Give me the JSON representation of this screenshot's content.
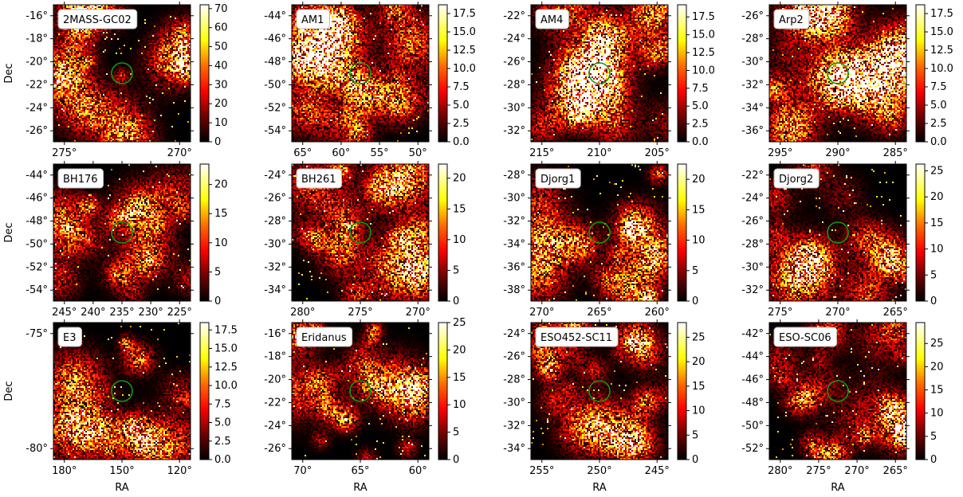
{
  "figure": {
    "xlabel": "RA",
    "ylabel": "Dec",
    "colormap": [
      "#000000",
      "#400000",
      "#800000",
      "#c01000",
      "#ff3000",
      "#ff7000",
      "#ffb000",
      "#ffe020",
      "#ffff60",
      "#ffffe0"
    ],
    "marker_color": "#119911"
  },
  "chart_data": [
    {
      "type": "heatmap",
      "name": "2MASS-GC02",
      "x_ticks": [
        "275°",
        "270°"
      ],
      "y_ticks": [
        "-16°",
        "-18°",
        "-20°",
        "-22°",
        "-24°",
        "-26°"
      ],
      "colorbar_ticks": [
        "0",
        "10",
        "20",
        "30",
        "40",
        "50",
        "60",
        "70"
      ],
      "colorbar_max": 72,
      "xlabel": "",
      "ylabel": "Dec"
    },
    {
      "type": "heatmap",
      "name": "AM1",
      "x_ticks": [
        "65°",
        "60°",
        "55°",
        "50°"
      ],
      "y_ticks": [
        "-44°",
        "-46°",
        "-48°",
        "-50°",
        "-52°",
        "-54°"
      ],
      "colorbar_ticks": [
        "0.0",
        "2.5",
        "5.0",
        "7.5",
        "10.0",
        "12.5",
        "15.0",
        "17.5"
      ],
      "colorbar_max": 18.7,
      "xlabel": "",
      "ylabel": ""
    },
    {
      "type": "heatmap",
      "name": "AM4",
      "x_ticks": [
        "215°",
        "210°",
        "205°"
      ],
      "y_ticks": [
        "-22°",
        "-24°",
        "-26°",
        "-28°",
        "-30°",
        "-32°"
      ],
      "colorbar_ticks": [
        "0.0",
        "2.5",
        "5.0",
        "7.5",
        "10.0",
        "12.5",
        "15.0",
        "17.5"
      ],
      "colorbar_max": 19.2,
      "xlabel": "",
      "ylabel": ""
    },
    {
      "type": "heatmap",
      "name": "Arp2",
      "x_ticks": [
        "295°",
        "290°",
        "285°"
      ],
      "y_ticks": [
        "-26°",
        "-28°",
        "-30°",
        "-32°",
        "-34°",
        "-36°"
      ],
      "colorbar_ticks": [
        "0.0",
        "2.5",
        "5.0",
        "7.5",
        "10.0",
        "12.5",
        "15.0",
        "17.5"
      ],
      "colorbar_max": 18.7,
      "xlabel": "",
      "ylabel": ""
    },
    {
      "type": "heatmap",
      "name": "BH176",
      "x_ticks": [
        "245°",
        "240°",
        "235°",
        "230°",
        "225°"
      ],
      "y_ticks": [
        "-44°",
        "-46°",
        "-48°",
        "-50°",
        "-52°",
        "-54°"
      ],
      "colorbar_ticks": [
        "0",
        "5",
        "10",
        "15",
        "20"
      ],
      "colorbar_max": 23.5,
      "xlabel": "",
      "ylabel": "Dec"
    },
    {
      "type": "heatmap",
      "name": "BH261",
      "x_ticks": [
        "280°",
        "275°",
        "270°"
      ],
      "y_ticks": [
        "-24°",
        "-26°",
        "-28°",
        "-30°",
        "-32°",
        "-34°"
      ],
      "colorbar_ticks": [
        "0",
        "5",
        "10",
        "15",
        "20"
      ],
      "colorbar_max": 22.3,
      "xlabel": "",
      "ylabel": ""
    },
    {
      "type": "heatmap",
      "name": "Djorg1",
      "x_ticks": [
        "270°",
        "265°",
        "260°"
      ],
      "y_ticks": [
        "-28°",
        "-30°",
        "-32°",
        "-34°",
        "-36°",
        "-38°"
      ],
      "colorbar_ticks": [
        "0",
        "5",
        "10",
        "15",
        "20"
      ],
      "colorbar_max": 22.5,
      "xlabel": "",
      "ylabel": ""
    },
    {
      "type": "heatmap",
      "name": "Djorg2",
      "x_ticks": [
        "275°",
        "270°",
        "265°"
      ],
      "y_ticks": [
        "-22°",
        "-24°",
        "-26°",
        "-28°",
        "-30°",
        "-32°"
      ],
      "colorbar_ticks": [
        "0",
        "5",
        "10",
        "15",
        "20",
        "25"
      ],
      "colorbar_max": 26.3,
      "xlabel": "",
      "ylabel": ""
    },
    {
      "type": "heatmap",
      "name": "E3",
      "x_ticks": [
        "180°",
        "150°",
        "120°"
      ],
      "y_ticks": [
        "-75°",
        "-80°"
      ],
      "colorbar_ticks": [
        "0.0",
        "2.5",
        "5.0",
        "7.5",
        "10.0",
        "12.5",
        "15.0",
        "17.5"
      ],
      "colorbar_max": 18.5,
      "xlabel": "RA",
      "ylabel": "Dec"
    },
    {
      "type": "heatmap",
      "name": "Eridanus",
      "x_ticks": [
        "70°",
        "65°",
        "60°"
      ],
      "y_ticks": [
        "-16°",
        "-18°",
        "-20°",
        "-22°",
        "-24°",
        "-26°"
      ],
      "colorbar_ticks": [
        "0",
        "5",
        "10",
        "15",
        "20",
        "25"
      ],
      "colorbar_max": 25,
      "xlabel": "RA",
      "ylabel": ""
    },
    {
      "type": "heatmap",
      "name": "ESO452-SC11",
      "x_ticks": [
        "255°",
        "250°",
        "245°"
      ],
      "y_ticks": [
        "-24°",
        "-26°",
        "-28°",
        "-30°",
        "-32°",
        "-34°"
      ],
      "colorbar_ticks": [
        "0",
        "5",
        "10",
        "15",
        "20",
        "25"
      ],
      "colorbar_max": 28,
      "xlabel": "RA",
      "ylabel": ""
    },
    {
      "type": "heatmap",
      "name": "ESO-SC06",
      "x_ticks": [
        "280°",
        "275°",
        "270°",
        "265°"
      ],
      "y_ticks": [
        "-42°",
        "-44°",
        "-46°",
        "-48°",
        "-50°",
        "-52°"
      ],
      "colorbar_ticks": [
        "0",
        "5",
        "10",
        "15",
        "20",
        "25"
      ],
      "colorbar_max": 29.5,
      "xlabel": "RA",
      "ylabel": ""
    }
  ]
}
